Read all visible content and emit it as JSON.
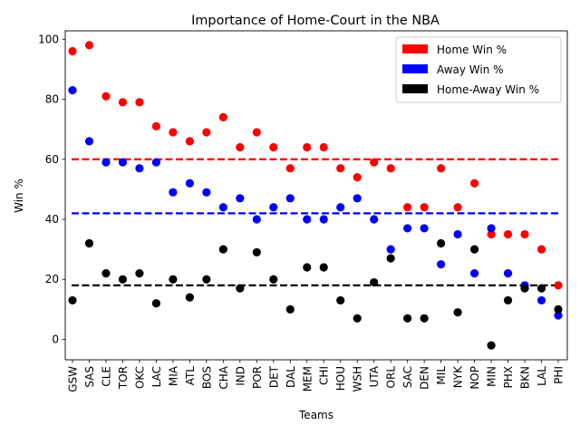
{
  "chart_data": {
    "type": "scatter",
    "title": "Importance of Home-Court in the NBA",
    "xlabel": "Teams",
    "ylabel": "Win %",
    "categories": [
      "GSW",
      "SAS",
      "CLE",
      "TOR",
      "OKC",
      "LAC",
      "MIA",
      "ATL",
      "BOS",
      "CHA",
      "IND",
      "POR",
      "DET",
      "DAL",
      "MEM",
      "CHI",
      "HOU",
      "WSH",
      "UTA",
      "ORL",
      "SAC",
      "DEN",
      "MIL",
      "NYK",
      "NOP",
      "MIN",
      "PHX",
      "BKN",
      "LAL",
      "PHI"
    ],
    "series": [
      {
        "name": "Home Win %",
        "color": "#ff0000",
        "values": [
          96,
          98,
          81,
          79,
          79,
          71,
          69,
          66,
          69,
          74,
          64,
          69,
          64,
          57,
          64,
          64,
          57,
          54,
          59,
          57,
          44,
          44,
          57,
          44,
          52,
          35,
          35,
          35,
          30,
          18
        ]
      },
      {
        "name": "Away Win %",
        "color": "#0000ff",
        "values": [
          83,
          66,
          59,
          59,
          57,
          59,
          49,
          52,
          49,
          44,
          47,
          40,
          44,
          47,
          40,
          40,
          44,
          47,
          40,
          30,
          37,
          37,
          25,
          35,
          22,
          37,
          22,
          18,
          13,
          8
        ]
      },
      {
        "name": "Home-Away Win %",
        "color": "#000000",
        "values": [
          13,
          32,
          22,
          20,
          22,
          12,
          20,
          14,
          20,
          30,
          17,
          29,
          20,
          10,
          24,
          24,
          13,
          7,
          19,
          27,
          7,
          7,
          32,
          9,
          30,
          -2,
          13,
          17,
          17,
          10
        ]
      }
    ],
    "reference_lines": [
      {
        "value": 60,
        "color": "#ff0000",
        "style": "dashed"
      },
      {
        "value": 42,
        "color": "#0000ff",
        "style": "dashed"
      },
      {
        "value": 18,
        "color": "#000000",
        "style": "dashed"
      }
    ],
    "ylim": [
      -6.8,
      102.8
    ],
    "yticks": [
      0,
      20,
      40,
      60,
      80,
      100
    ],
    "grid": false,
    "legend_position": "top-right"
  }
}
